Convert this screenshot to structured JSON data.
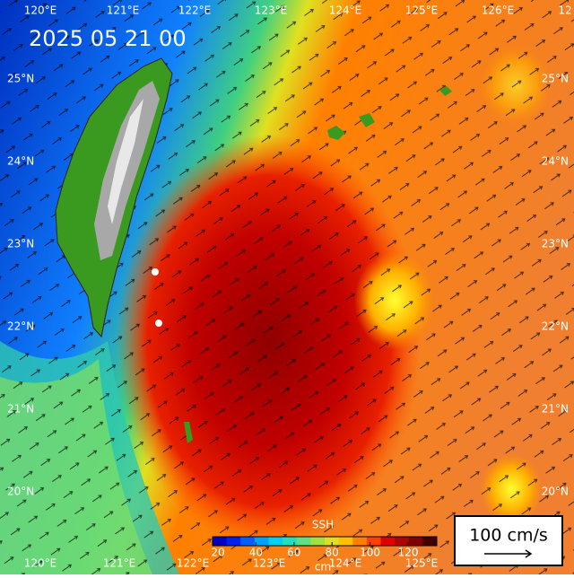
{
  "timestamp": "2025 05 21 00",
  "lon_labels_top": [
    "120°E",
    "121°E",
    "122°E",
    "123°E",
    "124°E",
    "125°E",
    "126°E",
    "12"
  ],
  "lon_labels_bottom": [
    "120°E",
    "121°E",
    "122°E",
    "123°E",
    "124°E",
    "125°E"
  ],
  "lat_labels_left": [
    "25°N",
    "24°N",
    "23°N",
    "22°N",
    "21°N",
    "20°N"
  ],
  "lat_labels_right": [
    "25°N",
    "24°N",
    "23°N",
    "22°N",
    "21°N",
    "20°N"
  ],
  "colorbar": {
    "title": "SSH",
    "unit": "cm",
    "ticks": [
      20,
      40,
      60,
      80,
      100,
      120
    ],
    "colors": [
      "#0000c8",
      "#0020f0",
      "#0060ff",
      "#00a0ff",
      "#00d0f0",
      "#20e0c0",
      "#60e080",
      "#a0e040",
      "#e0e020",
      "#ffc000",
      "#ff8000",
      "#ff4000",
      "#e00000",
      "#b00000",
      "#800000",
      "#400000"
    ]
  },
  "scale": {
    "label": "100 cm/s"
  }
}
